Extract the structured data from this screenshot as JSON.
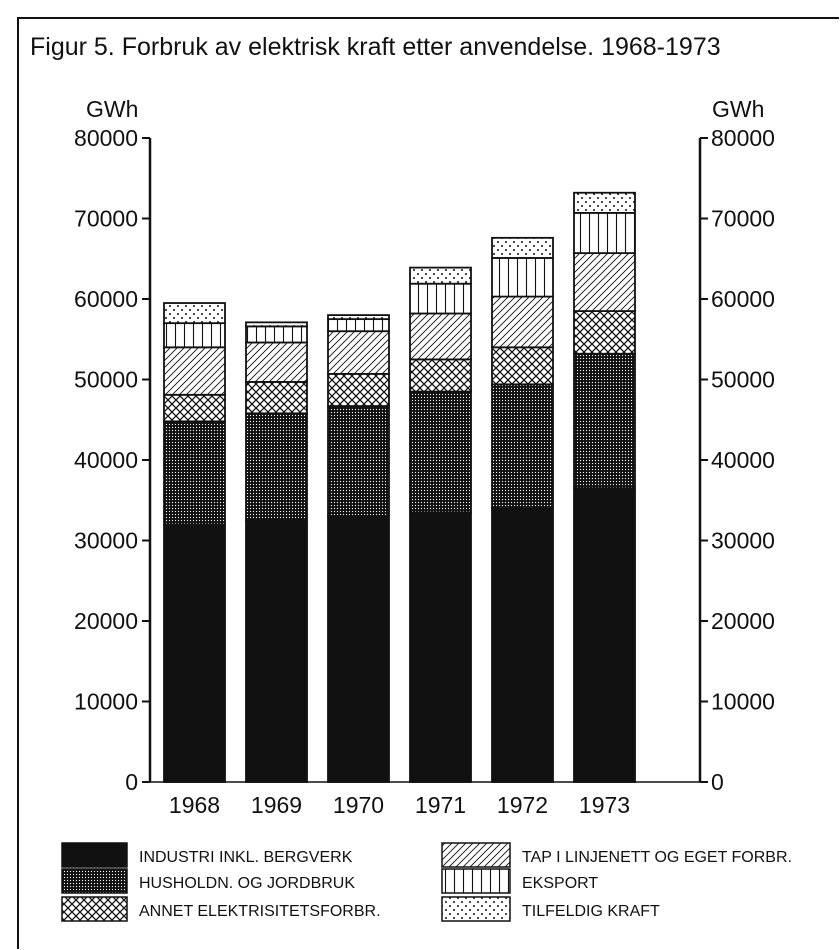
{
  "chart_data": {
    "type": "bar",
    "stacked": true,
    "title": "Figur 5. Forbruk av elektrisk kraft etter anvendelse. 1968-1973",
    "ylabel_left": "GWh",
    "ylabel_right": "GWh",
    "ylim": [
      0,
      80000
    ],
    "y_ticks": [
      0,
      10000,
      20000,
      30000,
      40000,
      50000,
      60000,
      70000,
      80000
    ],
    "y_tick_labels_left": [
      "0",
      "10000",
      "20000",
      "30000",
      "40000",
      "50000",
      "60000",
      "70000",
      "80000"
    ],
    "y_tick_labels_right": [
      "0",
      "10000",
      "20000",
      "30000",
      "40000",
      "50000",
      "60000",
      "70000",
      "80000"
    ],
    "categories": [
      "1968",
      "1969",
      "1970",
      "1971",
      "1972",
      "1973"
    ],
    "series": [
      {
        "name": "INDUSTRI INKL. BERGVERK",
        "pattern": "solid",
        "values": [
          32000,
          32500,
          33000,
          33500,
          34000,
          36500
        ]
      },
      {
        "name": "HUSHOLDN. OG JORDBRUK",
        "pattern": "dots-dense",
        "values": [
          12800,
          13300,
          13700,
          15000,
          15400,
          16700
        ]
      },
      {
        "name": "ANNET ELEKTRISITETSFORBR.",
        "pattern": "crosshatch",
        "values": [
          3300,
          3900,
          4000,
          4000,
          4600,
          5300
        ]
      },
      {
        "name": "TAP I LINJENETT OG EGET FORBR.",
        "pattern": "diagonal",
        "values": [
          5900,
          4900,
          5300,
          5700,
          6300,
          7200
        ]
      },
      {
        "name": "EKSPORT",
        "pattern": "vertical",
        "values": [
          3000,
          2000,
          1500,
          3700,
          4800,
          5000
        ]
      },
      {
        "name": "TILFELDIG KRAFT",
        "pattern": "dots-sparse",
        "values": [
          2500,
          500,
          500,
          2000,
          2500,
          2500
        ]
      }
    ],
    "legend_position": "bottom",
    "grid": false
  }
}
